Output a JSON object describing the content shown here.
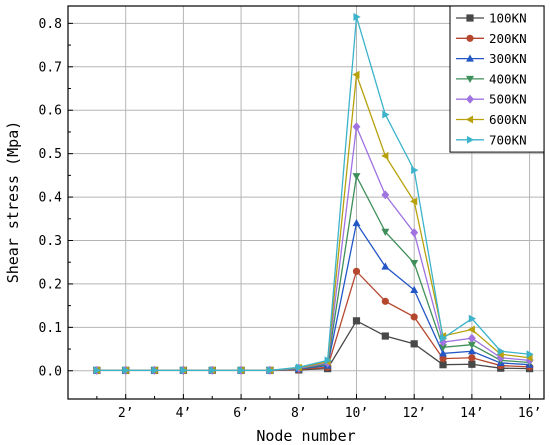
{
  "chart_data": {
    "type": "line",
    "xlabel": "Node number",
    "ylabel": "Shear stress (Mpa)",
    "x": [
      1,
      2,
      3,
      4,
      5,
      6,
      7,
      8,
      9,
      10,
      11,
      12,
      13,
      14,
      15,
      16
    ],
    "xlim": [
      0,
      16.5
    ],
    "ylim": [
      -0.065,
      0.84
    ],
    "x_ticks": [
      {
        "value": 2,
        "label": "2’"
      },
      {
        "value": 4,
        "label": "4’"
      },
      {
        "value": 6,
        "label": "6’"
      },
      {
        "value": 8,
        "label": "8’"
      },
      {
        "value": 10,
        "label": "10’"
      },
      {
        "value": 12,
        "label": "12’"
      },
      {
        "value": 14,
        "label": "14’"
      },
      {
        "value": 16,
        "label": "16’"
      }
    ],
    "y_ticks": [
      {
        "value": 0.0,
        "label": "0.0"
      },
      {
        "value": 0.1,
        "label": "0.1"
      },
      {
        "value": 0.2,
        "label": "0.2"
      },
      {
        "value": 0.3,
        "label": "0.3"
      },
      {
        "value": 0.4,
        "label": "0.4"
      },
      {
        "value": 0.5,
        "label": "0.5"
      },
      {
        "value": 0.6,
        "label": "0.6"
      },
      {
        "value": 0.7,
        "label": "0.7"
      },
      {
        "value": 0.8,
        "label": "0.8"
      }
    ],
    "grid": true,
    "legend_position": "top-right",
    "series": [
      {
        "name": "100KN",
        "color": "#484848",
        "marker": "square",
        "values": [
          0.001,
          0.001,
          0.001,
          0.001,
          0.001,
          0.001,
          0.001,
          0.002,
          0.005,
          0.115,
          0.08,
          0.062,
          0.014,
          0.015,
          0.006,
          0.005
        ]
      },
      {
        "name": "200KN",
        "color": "#b5472f",
        "marker": "circle",
        "values": [
          0.001,
          0.001,
          0.001,
          0.001,
          0.001,
          0.001,
          0.001,
          0.003,
          0.008,
          0.229,
          0.16,
          0.124,
          0.028,
          0.03,
          0.012,
          0.009
        ]
      },
      {
        "name": "300KN",
        "color": "#2357c6",
        "marker": "triangle-up",
        "values": [
          0.001,
          0.001,
          0.001,
          0.001,
          0.001,
          0.001,
          0.001,
          0.004,
          0.012,
          0.34,
          0.24,
          0.186,
          0.04,
          0.045,
          0.018,
          0.014
        ]
      },
      {
        "name": "400KN",
        "color": "#3f8f5a",
        "marker": "triangle-down",
        "values": [
          0.001,
          0.001,
          0.001,
          0.001,
          0.001,
          0.001,
          0.001,
          0.005,
          0.015,
          0.448,
          0.32,
          0.248,
          0.054,
          0.06,
          0.024,
          0.019
        ]
      },
      {
        "name": "500KN",
        "color": "#a073e0",
        "marker": "diamond",
        "values": [
          0.001,
          0.001,
          0.001,
          0.001,
          0.001,
          0.001,
          0.001,
          0.006,
          0.018,
          0.562,
          0.405,
          0.318,
          0.066,
          0.075,
          0.03,
          0.024
        ]
      },
      {
        "name": "600KN",
        "color": "#b8a10c",
        "marker": "triangle-left",
        "values": [
          0.001,
          0.001,
          0.001,
          0.001,
          0.001,
          0.001,
          0.001,
          0.007,
          0.021,
          0.682,
          0.495,
          0.39,
          0.08,
          0.095,
          0.038,
          0.03
        ]
      },
      {
        "name": "700KN",
        "color": "#3cb3cb",
        "marker": "triangle-right",
        "values": [
          0.001,
          0.001,
          0.001,
          0.001,
          0.001,
          0.001,
          0.001,
          0.008,
          0.024,
          0.815,
          0.59,
          0.462,
          0.075,
          0.12,
          0.045,
          0.038
        ]
      }
    ]
  }
}
